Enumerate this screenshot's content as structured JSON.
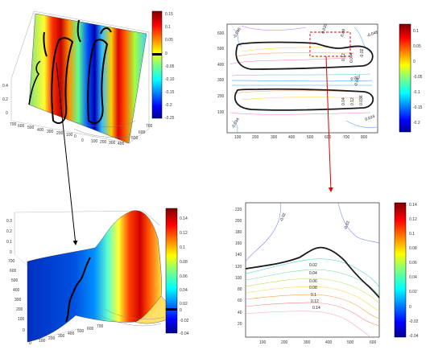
{
  "figure": {
    "panels": [
      "3d-surface-top-left",
      "contour-top-right",
      "3d-surface-bottom-left",
      "contour-bottom-right"
    ]
  },
  "chart_data": [
    {
      "type": "surface3d",
      "id": "top-left",
      "zlim": [
        -0.25,
        0.15
      ],
      "z_ticks": [
        "0.4",
        "0.2",
        "0"
      ],
      "x_ticks": [
        "700",
        "600",
        "500",
        "400",
        "300",
        "200",
        "100",
        "0"
      ],
      "y_ticks": [
        "0",
        "100",
        "200",
        "300",
        "400",
        "500",
        "600",
        "700"
      ],
      "colorbar_ticks": [
        "0.15",
        "0.1",
        "0.05",
        "0",
        "-0.05",
        "-0.10",
        "-0.15",
        "-0.2",
        "-0.25"
      ],
      "colorbar_marker": 0
    },
    {
      "type": "contour",
      "id": "top-right",
      "x_ticks": [
        "100",
        "200",
        "300",
        "400",
        "500",
        "600",
        "700",
        "800"
      ],
      "y_ticks": [
        "600",
        "500",
        "400",
        "300",
        "200",
        "100"
      ],
      "colorbar_ticks": [
        "0.1",
        "0.05",
        "0",
        "-0.05",
        "-0.1",
        "-0.15",
        "-0.2"
      ],
      "contour_labels": [
        "-0.096",
        "0.035",
        "0.08",
        "-0.048",
        "0.12",
        "0.044",
        "-0.02",
        "0.007",
        "-0.06",
        "0.04",
        "0.12",
        "0.036",
        "-0.034",
        "0.024"
      ]
    },
    {
      "type": "surface3d",
      "id": "bottom-left",
      "zlim": [
        -0.04,
        0.14
      ],
      "z_ticks": [
        "0.3",
        "0.2",
        "0.1",
        "0"
      ],
      "x_ticks": [
        "0",
        "100",
        "200",
        "300",
        "400",
        "500",
        "600",
        "700"
      ],
      "y_ticks": [
        "700",
        "600",
        "500",
        "400",
        "300",
        "200",
        "100",
        "0"
      ],
      "colorbar_ticks": [
        "0.14",
        "0.12",
        "0.1",
        "0.08",
        "0.06",
        "0.04",
        "0.02",
        "0",
        "-0.02",
        "-0.04"
      ],
      "colorbar_marker": 0
    },
    {
      "type": "contour",
      "id": "bottom-right",
      "x_ticks": [
        "100",
        "200",
        "300",
        "400",
        "500",
        "600"
      ],
      "y_ticks": [
        "220",
        "200",
        "180",
        "160",
        "140",
        "120",
        "100",
        "80",
        "60",
        "40",
        "20"
      ],
      "colorbar_ticks": [
        "0.14",
        "0.12",
        "0.1",
        "0.08",
        "0.06",
        "0.04",
        "0.02",
        "0",
        "-0.02",
        "-0.04"
      ],
      "contour_labels": [
        "0.02",
        "0.04",
        "0.06",
        "0.08",
        "0.1",
        "0.12",
        "0.14",
        "-0.02",
        "-0.02"
      ]
    }
  ]
}
